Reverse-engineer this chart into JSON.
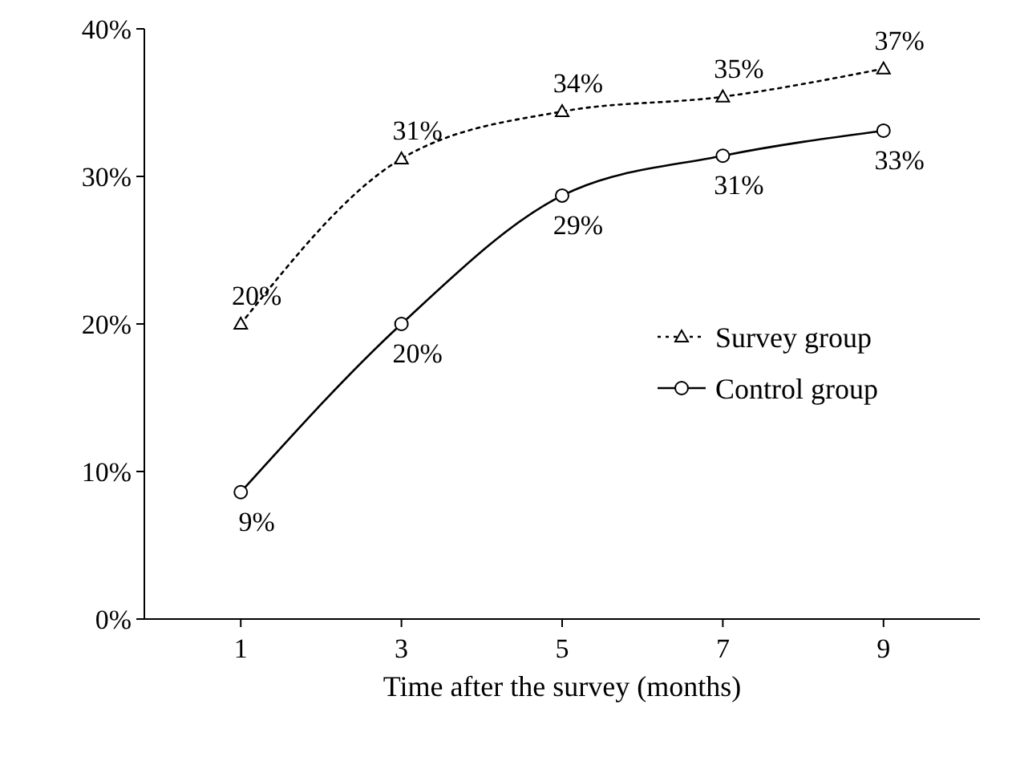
{
  "chart_data": {
    "type": "line",
    "xlabel": "Time after the survey (months)",
    "categories": [
      "1",
      "3",
      "5",
      "7",
      "9"
    ],
    "ylim": [
      0,
      40
    ],
    "yticks": [
      {
        "value": 0,
        "label": "0%"
      },
      {
        "value": 10,
        "label": "10%"
      },
      {
        "value": 20,
        "label": "20%"
      },
      {
        "value": 30,
        "label": "30%"
      },
      {
        "value": 40,
        "label": "40%"
      }
    ],
    "series": [
      {
        "name": "Survey group",
        "color": "#000000",
        "marker": "triangle",
        "line_style": "dotted",
        "values": [
          20,
          31.2,
          34.4,
          35.4,
          37.3
        ],
        "value_labels": [
          "20%",
          "31%",
          "34%",
          "35%",
          "37%"
        ]
      },
      {
        "name": "Control group",
        "color": "#000000",
        "marker": "circle",
        "line_style": "solid",
        "values": [
          8.6,
          20,
          28.7,
          31.4,
          33.1
        ],
        "value_labels": [
          "9%",
          "20%",
          "29%",
          "31%",
          "33%"
        ]
      }
    ],
    "legend": "right",
    "grid": false
  }
}
